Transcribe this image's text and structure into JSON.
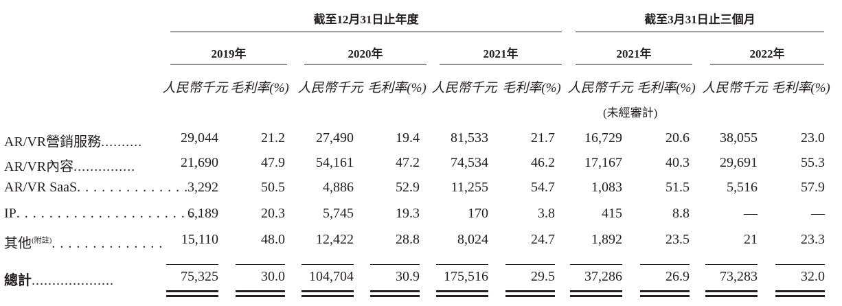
{
  "headers": {
    "year_end_group": "截至12月31日止年度",
    "three_month_group": "截至3月31日止三個月",
    "periods": [
      "2019年",
      "2020年",
      "2021年",
      "2021年",
      "2022年"
    ],
    "unit_rmb": "人民幣千元",
    "unit_margin": "毛利率(%)",
    "unaudited": "(未經審計)"
  },
  "rows": [
    {
      "label": "AR/VR營銷服務",
      "dots": "..........",
      "values": [
        "29,044",
        "21.2",
        "27,490",
        "19.4",
        "81,533",
        "21.7",
        "16,729",
        "20.6",
        "38,055",
        "23.0"
      ]
    },
    {
      "label": "AR/VR內容",
      "dots": "...............",
      "values": [
        "21,690",
        "47.9",
        "54,161",
        "47.2",
        "74,534",
        "46.2",
        "17,167",
        "40.3",
        "29,691",
        "55.3"
      ]
    },
    {
      "label": "AR/VR SaaS",
      "dots": ". . . . . . . . . . . . . .",
      "values": [
        "3,292",
        "50.5",
        "4,886",
        "52.9",
        "11,255",
        "54.7",
        "1,083",
        "51.5",
        "5,516",
        "57.9"
      ]
    },
    {
      "label": "IP",
      "dots": ". . . . . . . . . . . . . . . . . . . . . . .",
      "values": [
        "6,189",
        "20.3",
        "5,745",
        "19.3",
        "170",
        "3.8",
        "415",
        "8.8",
        "—",
        "—"
      ]
    },
    {
      "label": "其他",
      "note": "(附註)",
      "dots": ". . . . . . . . . . . . . .",
      "values": [
        "15,110",
        "48.0",
        "12,422",
        "28.8",
        "8,024",
        "24.7",
        "1,892",
        "23.5",
        "21",
        "23.3"
      ]
    }
  ],
  "total": {
    "label": "總計",
    "dots": "....................",
    "values": [
      "75,325",
      "30.0",
      "104,704",
      "30.9",
      "175,516",
      "29.5",
      "37,286",
      "26.9",
      "73,283",
      "32.0"
    ]
  }
}
